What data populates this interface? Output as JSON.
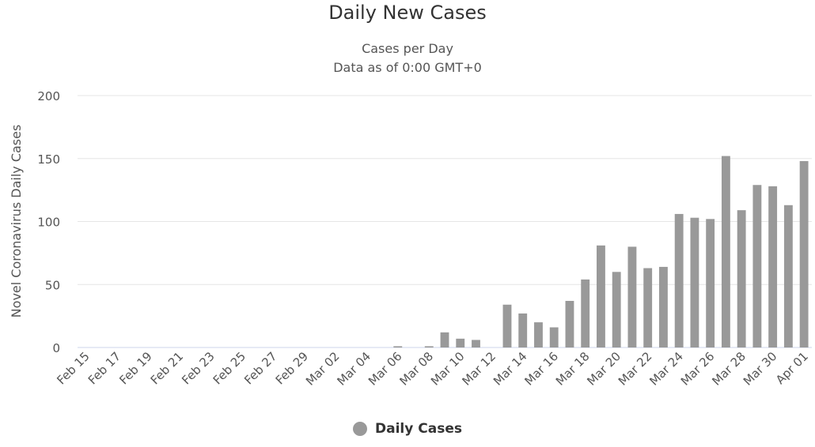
{
  "chart_data": {
    "type": "bar",
    "title": "Daily New Cases",
    "subtitle_lines": [
      "Cases per Day",
      "Data as of 0:00 GMT+0"
    ],
    "xlabel": "",
    "ylabel": "Novel Coronavirus Daily Cases",
    "ylim": [
      0,
      200
    ],
    "yticks": [
      0,
      50,
      100,
      150,
      200
    ],
    "grid": true,
    "legend": "bottom-center",
    "bar_color": "#999999",
    "categories": [
      "Feb 15",
      "Feb 16",
      "Feb 17",
      "Feb 18",
      "Feb 19",
      "Feb 20",
      "Feb 21",
      "Feb 22",
      "Feb 23",
      "Feb 24",
      "Feb 25",
      "Feb 26",
      "Feb 27",
      "Feb 28",
      "Feb 29",
      "Mar 01",
      "Mar 02",
      "Mar 03",
      "Mar 04",
      "Mar 05",
      "Mar 06",
      "Mar 07",
      "Mar 08",
      "Mar 09",
      "Mar 10",
      "Mar 11",
      "Mar 12",
      "Mar 13",
      "Mar 14",
      "Mar 15",
      "Mar 16",
      "Mar 17",
      "Mar 18",
      "Mar 19",
      "Mar 20",
      "Mar 21",
      "Mar 22",
      "Mar 23",
      "Mar 24",
      "Mar 25",
      "Mar 26",
      "Mar 27",
      "Mar 28",
      "Mar 29",
      "Mar 30",
      "Mar 31",
      "Apr 01"
    ],
    "x_tick_labels": [
      "Feb 15",
      "Feb 17",
      "Feb 19",
      "Feb 21",
      "Feb 23",
      "Feb 25",
      "Feb 27",
      "Feb 29",
      "Mar 02",
      "Mar 04",
      "Mar 06",
      "Mar 08",
      "Mar 10",
      "Mar 12",
      "Mar 14",
      "Mar 16",
      "Mar 18",
      "Mar 20",
      "Mar 22",
      "Mar 24",
      "Mar 26",
      "Mar 28",
      "Mar 30",
      "Apr 01"
    ],
    "series": [
      {
        "name": "Daily Cases",
        "values": [
          0,
          0,
          0,
          0,
          0,
          0,
          0,
          0,
          0,
          0,
          0,
          0,
          0,
          0,
          0,
          0,
          0,
          0,
          0,
          0,
          1,
          0,
          1,
          12,
          7,
          6,
          0,
          34,
          27,
          20,
          16,
          37,
          54,
          81,
          60,
          80,
          63,
          64,
          106,
          103,
          102,
          152,
          109,
          129,
          128,
          113,
          148
        ]
      }
    ]
  }
}
